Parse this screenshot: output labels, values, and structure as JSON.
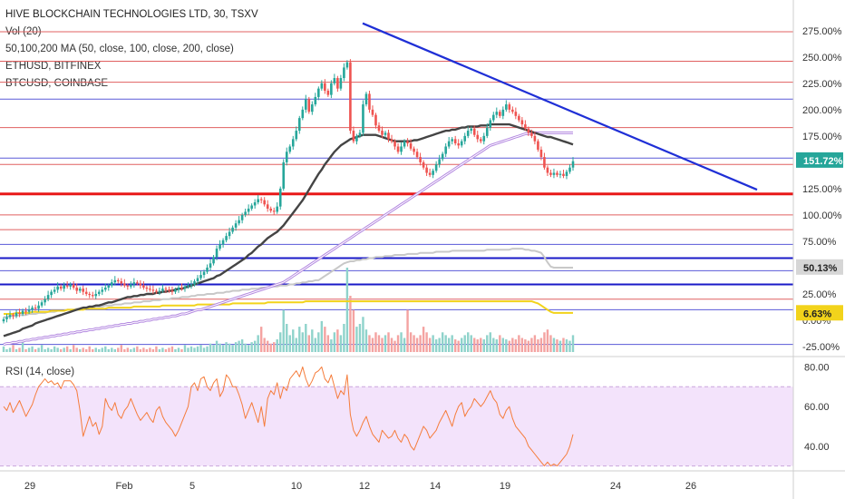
{
  "legend": {
    "title": "HIVE BLOCKCHAIN TECHNOLOGIES LTD, 30, TSXV",
    "vol": "Vol (20)",
    "ma": "50,100,200 MA (50, close, 100, close, 200, close)",
    "eth": "ETHUSD, BITFINEX",
    "btc": "BTCUSD, COINBASE",
    "rsi": "RSI (14, close)"
  },
  "colors": {
    "up": "#26a69a",
    "down": "#ef5350",
    "ma50": "#444444",
    "ma100": "#b388e0",
    "eth": "#c8c8c8",
    "btc": "#f2d31b",
    "trend": "#1f2fd6",
    "rsi": "#f57c3b",
    "rsi_band": "#f3e3fb"
  },
  "chart_data": {
    "type": "candlestick",
    "x_ticks": [
      "29",
      "Feb",
      "5",
      "10",
      "12",
      "14",
      "19",
      "24",
      "26"
    ],
    "y_ticks": [
      "275.00%",
      "250.00%",
      "225.00%",
      "200.00%",
      "175.00%",
      "150.00%",
      "125.00%",
      "100.00%",
      "75.00%",
      "50.00%",
      "25.00%",
      "0.00%",
      "-25.00%"
    ],
    "ylim": [
      -25,
      280
    ],
    "badges": [
      {
        "label": "151.72%",
        "value": 151.72,
        "color": "#26a69a"
      },
      {
        "label": "50.13%",
        "value": 50.13,
        "color": "#d6d6d6"
      },
      {
        "label": "6.63%",
        "value": 6.63,
        "color": "#f2d31b"
      }
    ],
    "rsi": {
      "y_ticks": [
        "80.00",
        "60.00",
        "40.00"
      ],
      "ylim": [
        28,
        82
      ],
      "band": [
        30,
        70
      ]
    },
    "horizontal_levels": [
      {
        "value": 274,
        "color": "#e06060",
        "weight": 1
      },
      {
        "value": 246,
        "color": "#e06060",
        "weight": 1
      },
      {
        "value": 226,
        "color": "#e06060",
        "weight": 1
      },
      {
        "value": 210,
        "color": "#5a5ad8",
        "weight": 1
      },
      {
        "value": 183,
        "color": "#e06060",
        "weight": 1
      },
      {
        "value": 154,
        "color": "#5a5ad8",
        "weight": 1
      },
      {
        "value": 148,
        "color": "#e06060",
        "weight": 1
      },
      {
        "value": 120,
        "color": "#e81818",
        "weight": 3
      },
      {
        "value": 100,
        "color": "#e06060",
        "weight": 1
      },
      {
        "value": 86,
        "color": "#e06060",
        "weight": 1
      },
      {
        "value": 72,
        "color": "#5a5ad8",
        "weight": 1
      },
      {
        "value": 59,
        "color": "#1a1ac8",
        "weight": 2
      },
      {
        "value": 47,
        "color": "#5a5ad8",
        "weight": 1
      },
      {
        "value": 34,
        "color": "#1a1ac8",
        "weight": 2
      },
      {
        "value": 20,
        "color": "#e06060",
        "weight": 1
      },
      {
        "value": 10,
        "color": "#5a5ad8",
        "weight": 1
      },
      {
        "value": -23,
        "color": "#5a5ad8",
        "weight": 1
      }
    ],
    "trendline": {
      "from": {
        "i": 108,
        "v": 282
      },
      "to": {
        "i": 230,
        "v": 124
      }
    },
    "closes": [
      1,
      3,
      5,
      4,
      7,
      6,
      9,
      8,
      10,
      12,
      11,
      14,
      17,
      20,
      24,
      27,
      29,
      32,
      30,
      33,
      32,
      34,
      31,
      28,
      30,
      27,
      25,
      24,
      23,
      25,
      27,
      29,
      31,
      33,
      36,
      38,
      37,
      35,
      33,
      32,
      34,
      36,
      35,
      33,
      31,
      30,
      29,
      28,
      27,
      28,
      30,
      29,
      28,
      27,
      29,
      31,
      30,
      32,
      33,
      34,
      37,
      40,
      43,
      46,
      50,
      54,
      60,
      68,
      72,
      76,
      80,
      84,
      88,
      92,
      95,
      100,
      103,
      106,
      109,
      112,
      115,
      114,
      110,
      106,
      104,
      103,
      108,
      125,
      150,
      160,
      165,
      172,
      180,
      192,
      200,
      210,
      198,
      205,
      212,
      220,
      225,
      218,
      214,
      225,
      230,
      220,
      230,
      240,
      245,
      180,
      170,
      175,
      178,
      205,
      215,
      200,
      195,
      185,
      180,
      176,
      178,
      172,
      170,
      165,
      160,
      165,
      170,
      168,
      163,
      160,
      155,
      150,
      145,
      140,
      138,
      142,
      148,
      153,
      158,
      165,
      170,
      172,
      168,
      166,
      170,
      175,
      180,
      182,
      176,
      172,
      170,
      175,
      183,
      190,
      195,
      198,
      194,
      200,
      205,
      200,
      198,
      194,
      190,
      186,
      182,
      178,
      175,
      170,
      162,
      155,
      145,
      140,
      138,
      140,
      138,
      139,
      137,
      141,
      145,
      151
    ],
    "ma50": [
      -15,
      -14,
      -13,
      -12,
      -11,
      -10,
      -8,
      -7,
      -6,
      -5,
      -3,
      -2,
      -1,
      0,
      1,
      2,
      3,
      4,
      5,
      6,
      7,
      8,
      9,
      10,
      11,
      12,
      12,
      13,
      13,
      14,
      14,
      15,
      16,
      17,
      17,
      18,
      19,
      20,
      21,
      22,
      22,
      23,
      23,
      24,
      24,
      25,
      25,
      25,
      26,
      26,
      27,
      27,
      28,
      28,
      29,
      30,
      30,
      31,
      32,
      33,
      34,
      35,
      36,
      37,
      38,
      39,
      40,
      42,
      43,
      45,
      47,
      49,
      51,
      53,
      55,
      57,
      59,
      62,
      64,
      67,
      70,
      72,
      75,
      78,
      80,
      82,
      84,
      87,
      90,
      94,
      98,
      102,
      106,
      110,
      114,
      119,
      124,
      129,
      134,
      139,
      143,
      148,
      152,
      156,
      160,
      163,
      166,
      168,
      170,
      172,
      173,
      174,
      175,
      176,
      176,
      176,
      176,
      176,
      175,
      174,
      173,
      172,
      171,
      170,
      170,
      170,
      170,
      170,
      170,
      171,
      171,
      172,
      173,
      174,
      175,
      176,
      177,
      178,
      179,
      180,
      180,
      181,
      181,
      182,
      183,
      183,
      184,
      184,
      184,
      184,
      185,
      185,
      185,
      186,
      186,
      186,
      186,
      186,
      186,
      186,
      185,
      184,
      183,
      182,
      181,
      180,
      179,
      178,
      177,
      176,
      175,
      174,
      174,
      173,
      172,
      171,
      170,
      169,
      168,
      167
    ],
    "ma100": [
      -23,
      -22,
      -22,
      -21,
      -21,
      -20,
      -20,
      -19,
      -19,
      -18,
      -18,
      -17,
      -17,
      -16,
      -16,
      -15,
      -15,
      -14,
      -14,
      -13,
      -13,
      -12,
      -12,
      -11,
      -11,
      -10,
      -10,
      -9,
      -9,
      -8,
      -8,
      -7,
      -7,
      -6,
      -6,
      -5,
      -5,
      -4,
      -4,
      -3,
      -3,
      -2,
      -2,
      -1,
      -1,
      0,
      0,
      1,
      1,
      2,
      2,
      3,
      3,
      4,
      4,
      5,
      6,
      6,
      7,
      8,
      9,
      10,
      10,
      11,
      12,
      13,
      14,
      15,
      16,
      17,
      18,
      19,
      20,
      21,
      22,
      23,
      24,
      25,
      26,
      27,
      28,
      29,
      30,
      31,
      32,
      33,
      34,
      35,
      36,
      38,
      40,
      42,
      44,
      46,
      48,
      50,
      52,
      54,
      56,
      58,
      60,
      62,
      64,
      66,
      68,
      70,
      72,
      74,
      76,
      78,
      80,
      82,
      84,
      86,
      88,
      90,
      92,
      94,
      96,
      98,
      100,
      102,
      104,
      106,
      108,
      110,
      112,
      114,
      116,
      118,
      120,
      122,
      124,
      126,
      128,
      130,
      132,
      134,
      136,
      138,
      140,
      142,
      144,
      146,
      148,
      150,
      152,
      154,
      156,
      158,
      160,
      162,
      164,
      166,
      167,
      168,
      169,
      170,
      171,
      172,
      173,
      174,
      175,
      176,
      177,
      177,
      178,
      178,
      178,
      178,
      178,
      178,
      178,
      178,
      178,
      178,
      178,
      178,
      178,
      178
    ],
    "eth": [
      3,
      3,
      4,
      4,
      4,
      5,
      5,
      5,
      6,
      6,
      6,
      7,
      7,
      7,
      8,
      8,
      8,
      9,
      9,
      9,
      10,
      10,
      10,
      11,
      11,
      11,
      12,
      12,
      12,
      13,
      13,
      13,
      14,
      14,
      14,
      15,
      15,
      15,
      16,
      16,
      16,
      17,
      17,
      17,
      18,
      18,
      18,
      19,
      19,
      19,
      20,
      20,
      20,
      21,
      21,
      21,
      22,
      22,
      22,
      23,
      23,
      24,
      24,
      24,
      25,
      25,
      25,
      26,
      26,
      26,
      27,
      27,
      28,
      28,
      28,
      29,
      29,
      29,
      30,
      30,
      30,
      31,
      31,
      31,
      32,
      32,
      32,
      33,
      33,
      33,
      34,
      34,
      35,
      35,
      36,
      36,
      37,
      37,
      38,
      38,
      40,
      42,
      44,
      46,
      48,
      50,
      52,
      54,
      55,
      56,
      56,
      57,
      57,
      58,
      58,
      59,
      59,
      60,
      60,
      60,
      61,
      61,
      61,
      62,
      62,
      62,
      62,
      63,
      63,
      63,
      63,
      64,
      64,
      64,
      64,
      64,
      65,
      65,
      65,
      65,
      65,
      66,
      66,
      66,
      66,
      66,
      66,
      66,
      66,
      66,
      66,
      66,
      67,
      67,
      67,
      67,
      67,
      67,
      67,
      67,
      68,
      68,
      68,
      68,
      67,
      67,
      66,
      66,
      65,
      64,
      60,
      55,
      51,
      50,
      50,
      50,
      50,
      50,
      50,
      50
    ],
    "btc": [
      6,
      6,
      6,
      6,
      7,
      7,
      7,
      7,
      7,
      8,
      8,
      8,
      8,
      8,
      8,
      9,
      9,
      9,
      9,
      9,
      10,
      10,
      10,
      10,
      10,
      10,
      11,
      11,
      11,
      11,
      11,
      11,
      11,
      12,
      12,
      12,
      12,
      12,
      12,
      12,
      12,
      13,
      13,
      13,
      13,
      13,
      13,
      13,
      13,
      13,
      14,
      14,
      14,
      14,
      14,
      14,
      14,
      14,
      14,
      14,
      14,
      15,
      15,
      15,
      15,
      15,
      15,
      15,
      15,
      15,
      15,
      15,
      16,
      16,
      16,
      16,
      16,
      16,
      16,
      16,
      16,
      16,
      16,
      17,
      17,
      17,
      17,
      17,
      17,
      17,
      17,
      17,
      17,
      17,
      17,
      18,
      18,
      18,
      18,
      18,
      18,
      18,
      18,
      18,
      18,
      18,
      18,
      18,
      18,
      18,
      18,
      18,
      18,
      18,
      18,
      18,
      18,
      18,
      18,
      18,
      18,
      18,
      18,
      18,
      18,
      18,
      18,
      18,
      18,
      18,
      18,
      18,
      18,
      18,
      18,
      18,
      18,
      18,
      18,
      18,
      18,
      18,
      18,
      18,
      18,
      18,
      18,
      18,
      18,
      18,
      18,
      18,
      18,
      18,
      18,
      18,
      18,
      18,
      18,
      18,
      18,
      18,
      18,
      18,
      18,
      18,
      18,
      17,
      16,
      14,
      12,
      10,
      8,
      7,
      7,
      7,
      7,
      7,
      7,
      7
    ],
    "volume": [
      4,
      2,
      3,
      5,
      2,
      3,
      8,
      2,
      3,
      4,
      2,
      3,
      5,
      2,
      3,
      2,
      4,
      3,
      2,
      3,
      4,
      2,
      5,
      3,
      2,
      3,
      2,
      4,
      2,
      3,
      2,
      3,
      4,
      2,
      3,
      2,
      3,
      5,
      2,
      3,
      2,
      3,
      4,
      2,
      3,
      2,
      3,
      2,
      4,
      2,
      3,
      2,
      3,
      4,
      2,
      3,
      2,
      5,
      3,
      4,
      3,
      4,
      5,
      3,
      4,
      6,
      5,
      8,
      6,
      5,
      7,
      6,
      5,
      7,
      8,
      9,
      6,
      5,
      7,
      8,
      12,
      18,
      10,
      8,
      6,
      7,
      9,
      14,
      30,
      20,
      12,
      16,
      10,
      18,
      14,
      20,
      12,
      16,
      10,
      14,
      22,
      18,
      12,
      9,
      14,
      16,
      12,
      20,
      60,
      40,
      30,
      18,
      20,
      25,
      16,
      12,
      10,
      14,
      12,
      10,
      12,
      14,
      10,
      8,
      12,
      14,
      10,
      30,
      14,
      12,
      10,
      12,
      18,
      14,
      10,
      12,
      9,
      10,
      14,
      12,
      10,
      12,
      9,
      8,
      10,
      12,
      14,
      12,
      10,
      9,
      10,
      9,
      12,
      14,
      10,
      9,
      12,
      10,
      9,
      8,
      10,
      9,
      12,
      10,
      9,
      8,
      10,
      12,
      9,
      10,
      14,
      16,
      12,
      10,
      9,
      8,
      10,
      9,
      8,
      12
    ],
    "rsi_values": [
      60,
      58,
      62,
      57,
      60,
      63,
      59,
      55,
      58,
      61,
      66,
      70,
      72,
      74,
      72,
      73,
      71,
      72,
      69,
      73,
      73,
      73,
      71,
      68,
      58,
      45,
      50,
      55,
      50,
      52,
      46,
      50,
      64,
      60,
      58,
      62,
      56,
      54,
      58,
      60,
      64,
      60,
      56,
      53,
      55,
      57,
      54,
      52,
      58,
      60,
      55,
      52,
      50,
      48,
      45,
      48,
      52,
      56,
      60,
      70,
      72,
      68,
      74,
      75,
      70,
      68,
      72,
      74,
      65,
      68,
      76,
      74,
      70,
      70,
      66,
      61,
      54,
      58,
      62,
      57,
      52,
      60,
      50,
      64,
      68,
      66,
      72,
      64,
      70,
      68,
      74,
      76,
      78,
      75,
      80,
      74,
      70,
      73,
      77,
      78,
      80,
      74,
      72,
      76,
      70,
      64,
      68,
      66,
      76,
      56,
      48,
      45,
      48,
      52,
      55,
      50,
      46,
      44,
      42,
      48,
      46,
      44,
      45,
      48,
      44,
      42,
      46,
      44,
      40,
      38,
      42,
      46,
      50,
      48,
      44,
      46,
      48,
      52,
      55,
      58,
      54,
      50,
      56,
      60,
      62,
      55,
      58,
      60,
      64,
      62,
      60,
      62,
      65,
      68,
      64,
      62,
      56,
      54,
      58,
      60,
      54,
      50,
      48,
      46,
      44,
      40,
      38,
      36,
      34,
      32,
      30,
      32,
      30,
      31,
      30,
      32,
      34,
      36,
      40,
      46
    ]
  }
}
